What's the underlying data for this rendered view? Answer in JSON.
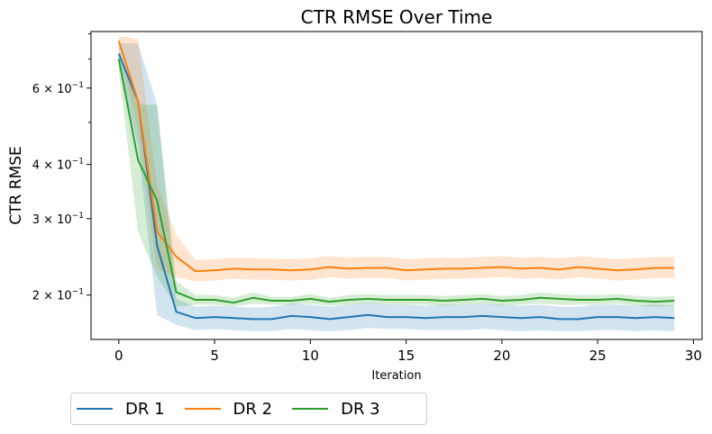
{
  "chart_data": {
    "type": "line",
    "title": "CTR RMSE Over Time",
    "xlabel": "Iteration",
    "ylabel": "CTR RMSE",
    "yscale": "log",
    "xlim": [
      -1.45,
      30.45
    ],
    "ylim": [
      0.158,
      0.81
    ],
    "x_ticks": [
      0,
      5,
      10,
      15,
      20,
      25,
      30
    ],
    "y_ticks": [
      {
        "value": 0.2,
        "base": "2",
        "exp": "−1"
      },
      {
        "value": 0.3,
        "base": "3",
        "exp": "−1"
      },
      {
        "value": 0.4,
        "base": "4",
        "exp": "−1"
      },
      {
        "value": 0.6,
        "base": "6",
        "exp": "−1"
      }
    ],
    "y_tick_label_times": "× 10",
    "y_minor_ticks": [
      0.5,
      0.7,
      0.8
    ],
    "grid": false,
    "legend_position": "below-left",
    "x": [
      0,
      1,
      2,
      3,
      4,
      5,
      6,
      7,
      8,
      9,
      10,
      11,
      12,
      13,
      14,
      15,
      16,
      17,
      18,
      19,
      20,
      21,
      22,
      23,
      24,
      25,
      26,
      27,
      28,
      29
    ],
    "series": [
      {
        "name": "DR 1",
        "color": "#1f77b4",
        "values": [
          0.72,
          0.56,
          0.26,
          0.183,
          0.177,
          0.178,
          0.177,
          0.176,
          0.176,
          0.179,
          0.178,
          0.176,
          0.178,
          0.18,
          0.178,
          0.178,
          0.177,
          0.178,
          0.178,
          0.179,
          0.178,
          0.177,
          0.178,
          0.176,
          0.176,
          0.178,
          0.178,
          0.177,
          0.178,
          0.177
        ],
        "lower": [
          0.68,
          0.44,
          0.18,
          0.171,
          0.166,
          0.167,
          0.166,
          0.165,
          0.165,
          0.167,
          0.166,
          0.165,
          0.166,
          0.168,
          0.167,
          0.167,
          0.166,
          0.166,
          0.166,
          0.167,
          0.166,
          0.165,
          0.166,
          0.165,
          0.165,
          0.166,
          0.166,
          0.165,
          0.166,
          0.165
        ],
        "upper": [
          0.76,
          0.76,
          0.55,
          0.196,
          0.188,
          0.189,
          0.188,
          0.187,
          0.188,
          0.191,
          0.19,
          0.188,
          0.19,
          0.192,
          0.19,
          0.19,
          0.189,
          0.19,
          0.19,
          0.191,
          0.19,
          0.189,
          0.19,
          0.188,
          0.188,
          0.19,
          0.19,
          0.189,
          0.19,
          0.189
        ]
      },
      {
        "name": "DR 2",
        "color": "#ff7f0e",
        "values": [
          0.77,
          0.56,
          0.28,
          0.245,
          0.227,
          0.228,
          0.23,
          0.229,
          0.229,
          0.228,
          0.229,
          0.232,
          0.23,
          0.231,
          0.231,
          0.228,
          0.229,
          0.23,
          0.23,
          0.231,
          0.232,
          0.23,
          0.231,
          0.229,
          0.232,
          0.23,
          0.228,
          0.229,
          0.231,
          0.231
        ],
        "lower": [
          0.74,
          0.48,
          0.23,
          0.22,
          0.215,
          0.216,
          0.218,
          0.217,
          0.217,
          0.216,
          0.217,
          0.22,
          0.218,
          0.219,
          0.219,
          0.216,
          0.217,
          0.218,
          0.218,
          0.219,
          0.22,
          0.218,
          0.219,
          0.217,
          0.22,
          0.218,
          0.216,
          0.217,
          0.219,
          0.219
        ],
        "upper": [
          0.79,
          0.78,
          0.36,
          0.275,
          0.241,
          0.242,
          0.244,
          0.243,
          0.243,
          0.242,
          0.243,
          0.246,
          0.244,
          0.245,
          0.245,
          0.242,
          0.243,
          0.244,
          0.244,
          0.245,
          0.246,
          0.244,
          0.245,
          0.243,
          0.246,
          0.244,
          0.242,
          0.243,
          0.245,
          0.245
        ]
      },
      {
        "name": "DR 3",
        "color": "#2ca02c",
        "values": [
          0.7,
          0.41,
          0.33,
          0.203,
          0.195,
          0.195,
          0.192,
          0.197,
          0.194,
          0.194,
          0.196,
          0.193,
          0.195,
          0.196,
          0.195,
          0.195,
          0.195,
          0.194,
          0.195,
          0.196,
          0.194,
          0.195,
          0.197,
          0.196,
          0.195,
          0.195,
          0.196,
          0.194,
          0.193,
          0.194
        ],
        "lower": [
          0.66,
          0.28,
          0.22,
          0.188,
          0.19,
          0.19,
          0.188,
          0.191,
          0.19,
          0.19,
          0.191,
          0.189,
          0.19,
          0.191,
          0.19,
          0.19,
          0.19,
          0.189,
          0.19,
          0.191,
          0.189,
          0.19,
          0.191,
          0.19,
          0.19,
          0.19,
          0.191,
          0.189,
          0.188,
          0.189
        ],
        "upper": [
          0.73,
          0.55,
          0.55,
          0.215,
          0.2,
          0.2,
          0.197,
          0.203,
          0.198,
          0.198,
          0.201,
          0.197,
          0.2,
          0.201,
          0.2,
          0.2,
          0.2,
          0.199,
          0.2,
          0.201,
          0.199,
          0.2,
          0.203,
          0.201,
          0.2,
          0.2,
          0.201,
          0.199,
          0.198,
          0.199
        ]
      }
    ]
  }
}
